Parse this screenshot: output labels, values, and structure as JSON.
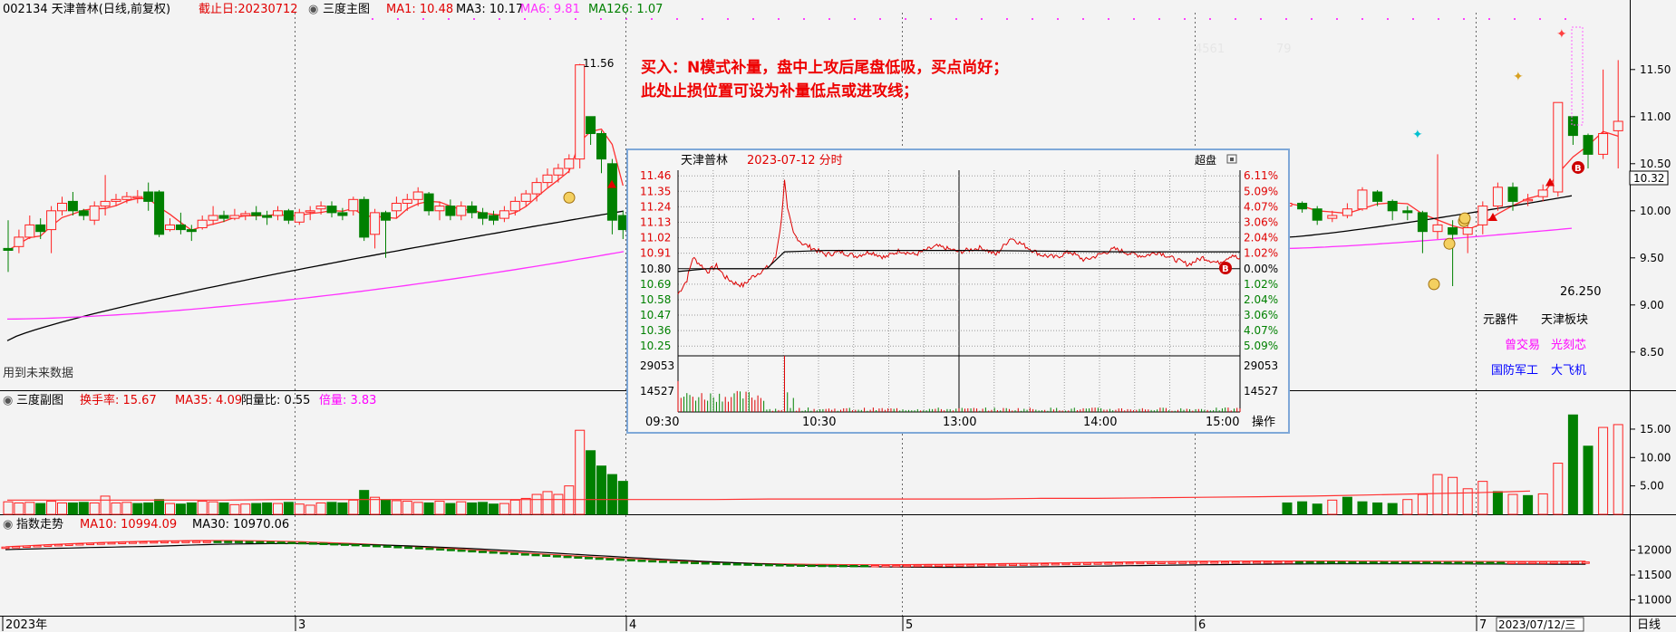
{
  "colors": {
    "up": "#ff2020",
    "down": "#008000",
    "ma1": "#ff3030",
    "ma3": "#000000",
    "ma6": "#ff30ff",
    "grid": "#9a9a9a",
    "title": "#e00000",
    "blue": "#0000ff",
    "magenta": "#ff00ff",
    "cyan": "#00b0d0",
    "gold": "#d7a020"
  },
  "main_header": {
    "code_name": "002134 天津普林(日线,前复权)",
    "deadline": "截止日:20230712",
    "panel": "三度主图",
    "ma1": "MA1: 10.48",
    "ma3": "MA3: 10.17",
    "ma6": "MA6: 9.81",
    "ma126": "MA126: 1.07"
  },
  "annotation": {
    "line1": "买入：N模式补量，盘中上攻后尾盘低吸，买点尚好；",
    "line2": "此处止损位置可设为补量低点或进攻线；"
  },
  "labels": {
    "future_data": "用到未来数据",
    "peak_price": "11.56",
    "faint_1": "4561",
    "faint_2": "79",
    "value_26250": "26.250",
    "tag_components": "元器件",
    "tag_tianjin": "天津板块",
    "tag_trade": "曾交易",
    "tag_litho": "光刻芯",
    "tag_defense": "国防军工",
    "tag_aircraft": "大飞机",
    "last_price": "10.32",
    "period": "日线",
    "date_badge": "2023/07/12/三"
  },
  "sub_header": {
    "panel": "三度副图",
    "turnover": "换手率: 15.67",
    "ma35": "MA35: 4.09",
    "yang_ratio": "阳量比: 0.55",
    "bei": "倍量: 3.83"
  },
  "index_header": {
    "panel": "指数走势",
    "ma10": "MA10: 10994.09",
    "ma30": "MA30: 10970.06"
  },
  "inset": {
    "title": "天津普林",
    "date": "2023-07-12 分时",
    "super_btn": "超盘",
    "op_btn": "操作",
    "b_marker": "B",
    "price_ticks": [
      "11.46",
      "11.35",
      "11.24",
      "11.13",
      "11.02",
      "10.91",
      "10.80",
      "10.69",
      "10.58",
      "10.47",
      "10.36",
      "10.25"
    ],
    "pct_ticks": [
      "6.11%",
      "5.09%",
      "4.07%",
      "3.06%",
      "2.04%",
      "1.02%",
      "0.00%",
      "1.02%",
      "2.04%",
      "3.06%",
      "4.07%",
      "5.09%"
    ],
    "vol_ticks": [
      "29053",
      "14527"
    ],
    "time_labels": [
      "09:30",
      "10:30",
      "13:00",
      "14:00",
      "15:00"
    ]
  },
  "chart_data": {
    "main": {
      "type": "candlestick",
      "y_ticks": [
        "11.50",
        "11.00",
        "10.50",
        "10.00",
        "9.50",
        "9.00",
        "8.50"
      ],
      "ylim": [
        8.2,
        11.95
      ],
      "x_labels": [
        "2023年",
        "3",
        "4",
        "5",
        "6",
        "7"
      ],
      "candles": [
        [
          9.6,
          9.58,
          9.35,
          9.9
        ],
        [
          9.62,
          9.72,
          9.55,
          9.8
        ],
        [
          9.72,
          9.85,
          9.7,
          9.95
        ],
        [
          9.85,
          9.78,
          9.7,
          9.92
        ],
        [
          9.8,
          10.0,
          9.55,
          10.05
        ],
        [
          10.0,
          10.08,
          9.95,
          10.15
        ],
        [
          10.1,
          10.0,
          9.95,
          10.2
        ],
        [
          10.0,
          9.95,
          9.9,
          10.02
        ],
        [
          9.9,
          10.05,
          9.85,
          10.1
        ],
        [
          10.05,
          10.1,
          9.95,
          10.38
        ],
        [
          10.1,
          10.12,
          10.05,
          10.18
        ],
        [
          10.12,
          10.15,
          10.08,
          10.2
        ],
        [
          10.15,
          10.15,
          10.08,
          10.22
        ],
        [
          10.2,
          10.1,
          10.0,
          10.3
        ],
        [
          10.2,
          9.75,
          9.72,
          10.22
        ],
        [
          9.8,
          9.85,
          9.78,
          9.92
        ],
        [
          9.85,
          9.8,
          9.75,
          9.98
        ],
        [
          9.8,
          9.78,
          9.68,
          9.85
        ],
        [
          9.82,
          9.9,
          9.8,
          9.95
        ],
        [
          9.9,
          9.95,
          9.85,
          10.05
        ],
        [
          9.95,
          9.92,
          9.88,
          10.0
        ],
        [
          9.92,
          9.95,
          9.9,
          10.02
        ],
        [
          9.95,
          9.97,
          9.9,
          10.0
        ],
        [
          9.98,
          9.95,
          9.9,
          10.05
        ],
        [
          9.95,
          9.93,
          9.85,
          10.0
        ],
        [
          9.95,
          10.0,
          9.9,
          10.05
        ],
        [
          10.0,
          9.9,
          9.86,
          10.02
        ],
        [
          9.88,
          9.98,
          9.85,
          10.02
        ],
        [
          10.0,
          10.0,
          9.9,
          10.05
        ],
        [
          10.02,
          10.05,
          9.96,
          10.1
        ],
        [
          10.05,
          9.98,
          9.93,
          10.1
        ],
        [
          9.98,
          9.95,
          9.9,
          10.03
        ],
        [
          10.0,
          10.12,
          9.95,
          10.15
        ],
        [
          10.12,
          9.72,
          9.68,
          10.15
        ],
        [
          9.75,
          9.98,
          9.6,
          10.02
        ],
        [
          9.98,
          9.9,
          9.5,
          10.0
        ],
        [
          10.0,
          10.08,
          9.92,
          10.15
        ],
        [
          10.08,
          10.12,
          10.0,
          10.18
        ],
        [
          10.12,
          10.2,
          10.05,
          10.25
        ],
        [
          10.18,
          10.0,
          9.95,
          10.2
        ],
        [
          10.0,
          10.05,
          9.9,
          10.1
        ],
        [
          10.05,
          9.95,
          9.9,
          10.12
        ],
        [
          9.95,
          10.05,
          9.9,
          10.1
        ],
        [
          10.05,
          9.98,
          9.92,
          10.1
        ],
        [
          9.98,
          9.92,
          9.85,
          10.03
        ],
        [
          9.95,
          9.9,
          9.85,
          10.0
        ],
        [
          9.92,
          10.0,
          9.88,
          10.05
        ],
        [
          10.0,
          10.1,
          9.95,
          10.15
        ],
        [
          10.1,
          10.18,
          10.05,
          10.22
        ],
        [
          10.18,
          10.3,
          10.1,
          10.35
        ],
        [
          10.3,
          10.38,
          10.25,
          10.45
        ],
        [
          10.38,
          10.45,
          10.3,
          10.5
        ],
        [
          10.45,
          10.55,
          10.4,
          10.6
        ],
        [
          10.55,
          11.55,
          10.45,
          11.56
        ],
        [
          11.0,
          10.82,
          10.7,
          11.0
        ],
        [
          10.82,
          10.55,
          10.4,
          10.85
        ],
        [
          10.5,
          9.9,
          9.75,
          10.55
        ],
        [
          9.95,
          9.8,
          9.7,
          10.0
        ]
      ],
      "right_candles": [
        [
          10.05,
          10.08,
          10.0,
          10.15
        ],
        [
          10.08,
          10.02,
          9.98,
          10.1
        ],
        [
          10.02,
          9.9,
          9.85,
          10.05
        ],
        [
          9.92,
          9.95,
          9.88,
          10.0
        ],
        [
          9.95,
          10.02,
          9.92,
          10.08
        ],
        [
          10.02,
          10.22,
          10.0,
          10.25
        ],
        [
          10.2,
          10.1,
          10.05,
          10.22
        ],
        [
          10.1,
          10.0,
          9.9,
          10.12
        ],
        [
          10.0,
          9.98,
          9.9,
          10.05
        ],
        [
          9.98,
          9.78,
          9.55,
          10.0
        ],
        [
          9.78,
          9.85,
          9.7,
          10.6
        ],
        [
          9.82,
          9.75,
          9.2,
          9.9
        ],
        [
          9.75,
          9.82,
          9.55,
          9.85
        ],
        [
          9.85,
          10.05,
          9.75,
          10.1
        ],
        [
          10.05,
          10.25,
          10.0,
          10.3
        ],
        [
          10.25,
          10.1,
          10.0,
          10.3
        ],
        [
          10.12,
          10.12,
          10.05,
          10.18
        ],
        [
          10.15,
          10.22,
          10.1,
          10.28
        ],
        [
          10.2,
          11.15,
          10.15,
          11.15
        ],
        [
          11.0,
          10.8,
          10.7,
          11.0
        ],
        [
          10.8,
          10.6,
          10.45,
          10.82
        ],
        [
          10.6,
          10.82,
          10.55,
          11.5
        ],
        [
          10.85,
          10.95,
          10.45,
          11.6
        ]
      ]
    },
    "sub": {
      "type": "bar",
      "y_ticks": [
        "15.00",
        "10.00",
        "5.00"
      ],
      "ylim": [
        0,
        18.5
      ],
      "values": [
        2.2,
        2.0,
        2.1,
        1.9,
        2.3,
        2.0,
        2.0,
        2.1,
        2.0,
        3.2,
        2.0,
        2.1,
        1.9,
        2.0,
        2.6,
        1.9,
        1.8,
        2.0,
        2.3,
        2.2,
        2.0,
        1.7,
        1.8,
        1.9,
        2.0,
        1.9,
        2.1,
        1.8,
        1.6,
        2.0,
        2.1,
        2.0,
        2.5,
        4.2,
        3.0,
        2.5,
        2.4,
        2.3,
        2.1,
        2.0,
        2.3,
        1.9,
        2.2,
        2.0,
        2.1,
        1.8,
        1.9,
        2.5,
        2.8,
        3.5,
        4.0,
        3.5,
        5.0,
        14.8,
        11.2,
        8.5,
        7.0,
        5.8
      ],
      "up": [
        1,
        1,
        1,
        0,
        1,
        1,
        0,
        0,
        1,
        1,
        1,
        1,
        0,
        0,
        0,
        1,
        0,
        0,
        1,
        1,
        0,
        1,
        1,
        0,
        0,
        1,
        0,
        1,
        1,
        1,
        0,
        0,
        1,
        0,
        1,
        0,
        1,
        1,
        1,
        0,
        1,
        0,
        1,
        0,
        0,
        0,
        1,
        1,
        1,
        1,
        1,
        1,
        1,
        1,
        0,
        0,
        0,
        0
      ],
      "right_values": [
        2.0,
        2.2,
        1.8,
        2.5,
        3.0,
        2.2,
        2.0,
        1.9,
        2.6,
        3.5,
        7.0,
        6.5,
        4.5,
        5.8,
        4.0,
        3.5,
        3.3,
        3.6,
        9.0,
        17.5,
        12.0,
        15.3,
        15.8
      ],
      "right_up": [
        0,
        0,
        0,
        1,
        0,
        0,
        0,
        0,
        1,
        1,
        1,
        1,
        1,
        1,
        0,
        1,
        0,
        1,
        1,
        0,
        0,
        1,
        1
      ],
      "ma35": [
        2.5,
        2.5,
        2.5,
        2.5,
        2.5,
        2.6,
        2.6,
        2.6,
        2.6,
        2.6,
        2.6,
        2.6,
        2.6,
        2.6,
        2.7,
        2.7,
        2.7,
        2.7,
        2.7,
        2.8,
        2.8,
        2.9,
        3.0,
        3.1,
        3.2,
        3.4,
        3.6,
        3.8,
        4.1
      ]
    },
    "index": {
      "type": "candlestick",
      "y_ticks": [
        "12000",
        "11500",
        "11000"
      ],
      "ylim": [
        10680,
        12320
      ],
      "ma10_label": "MA10",
      "ma30_label": "MA30"
    },
    "intraday": {
      "type": "line",
      "prev_close": 10.8,
      "ylim": [
        10.2,
        11.5
      ],
      "price_key": [
        [
          0,
          10.62
        ],
        [
          6,
          10.72
        ],
        [
          10,
          10.88
        ],
        [
          14,
          10.84
        ],
        [
          20,
          10.78
        ],
        [
          26,
          10.82
        ],
        [
          32,
          10.74
        ],
        [
          38,
          10.7
        ],
        [
          44,
          10.68
        ],
        [
          50,
          10.74
        ],
        [
          56,
          10.78
        ],
        [
          62,
          10.82
        ],
        [
          66,
          10.88
        ],
        [
          70,
          11.15
        ],
        [
          72,
          11.44
        ],
        [
          74,
          11.22
        ],
        [
          78,
          11.05
        ],
        [
          84,
          10.98
        ],
        [
          92,
          10.94
        ],
        [
          100,
          10.9
        ],
        [
          110,
          10.92
        ],
        [
          120,
          10.89
        ],
        [
          130,
          10.92
        ],
        [
          140,
          10.88
        ],
        [
          150,
          10.93
        ],
        [
          160,
          10.9
        ],
        [
          175,
          10.96
        ],
        [
          190,
          10.92
        ],
        [
          205,
          10.95
        ],
        [
          215,
          10.9
        ],
        [
          225,
          11.02
        ],
        [
          235,
          10.96
        ],
        [
          245,
          10.9
        ],
        [
          255,
          10.88
        ],
        [
          265,
          10.92
        ],
        [
          275,
          10.86
        ],
        [
          285,
          10.9
        ],
        [
          295,
          10.94
        ],
        [
          305,
          10.91
        ],
        [
          315,
          10.89
        ],
        [
          325,
          10.92
        ],
        [
          335,
          10.87
        ],
        [
          345,
          10.83
        ],
        [
          355,
          10.88
        ],
        [
          365,
          10.84
        ],
        [
          375,
          10.9
        ],
        [
          380,
          10.86
        ]
      ],
      "avg_key": [
        [
          0,
          10.78
        ],
        [
          20,
          10.8
        ],
        [
          60,
          10.8
        ],
        [
          72,
          10.92
        ],
        [
          100,
          10.93
        ],
        [
          200,
          10.93
        ],
        [
          300,
          10.92
        ],
        [
          380,
          10.92
        ]
      ],
      "volume_spikes": [
        [
          0,
          0.55
        ],
        [
          72,
          1.0
        ],
        [
          73,
          0.55
        ],
        [
          74,
          0.35
        ],
        [
          78,
          0.25
        ]
      ]
    }
  }
}
